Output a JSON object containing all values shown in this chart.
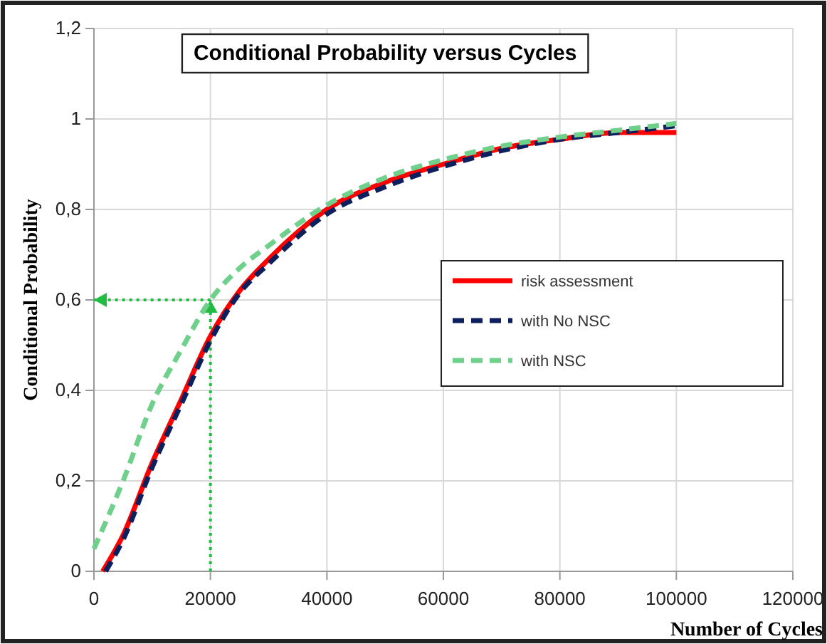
{
  "chart_data": {
    "type": "line",
    "title": "Conditional Probability versus Cycles",
    "xlabel": "Number of Cycles",
    "ylabel": "Conditional Probability",
    "xlim": [
      0,
      120000
    ],
    "xticks": [
      0,
      20000,
      40000,
      60000,
      80000,
      100000,
      120000
    ],
    "ylim": [
      0,
      1.2
    ],
    "yticks": [
      0,
      {
        "value": 0.2,
        "label": "0,2"
      },
      {
        "value": 0.4,
        "label": "0,4"
      },
      {
        "value": 0.6,
        "label": "0,6"
      },
      {
        "value": 0.8,
        "label": "0,8"
      },
      1,
      {
        "value": 1.2,
        "label": "1,2"
      }
    ],
    "grid": true,
    "legend": "right",
    "marker": "none",
    "ref_lines": [
      {
        "axis": "x",
        "value": 20000,
        "color": "#22bb44",
        "line_style": "dotted"
      },
      {
        "axis": "y",
        "value": 0.6,
        "color": "#22bb44",
        "line_style": "dotted"
      }
    ],
    "series": [
      {
        "name": "risk assessment",
        "color": "#ff0000",
        "line_style": "solid",
        "x": [
          1500,
          5000,
          10000,
          15000,
          20000,
          25000,
          30000,
          35000,
          40000,
          50000,
          60000,
          70000,
          80000,
          90000,
          100000
        ],
        "values": [
          0,
          0.08,
          0.24,
          0.38,
          0.52,
          0.62,
          0.69,
          0.75,
          0.8,
          0.86,
          0.9,
          0.935,
          0.955,
          0.97,
          0.97
        ]
      },
      {
        "name": "with No NSC",
        "color": "#0d1f5c",
        "line_style": "dashed",
        "x": [
          2000,
          5000,
          10000,
          15000,
          20000,
          25000,
          30000,
          40000,
          50000,
          60000,
          70000,
          80000,
          90000,
          100000
        ],
        "values": [
          0,
          0.07,
          0.23,
          0.37,
          0.51,
          0.615,
          0.68,
          0.79,
          0.85,
          0.895,
          0.93,
          0.955,
          0.97,
          0.985
        ]
      },
      {
        "name": "with NSC",
        "color": "#6fd08c",
        "line_style": "dashed",
        "x": [
          0,
          5000,
          10000,
          15000,
          20000,
          25000,
          30000,
          40000,
          50000,
          60000,
          70000,
          80000,
          90000,
          100000
        ],
        "values": [
          0.05,
          0.2,
          0.37,
          0.49,
          0.6,
          0.67,
          0.72,
          0.81,
          0.87,
          0.91,
          0.94,
          0.96,
          0.975,
          0.99
        ]
      }
    ]
  }
}
